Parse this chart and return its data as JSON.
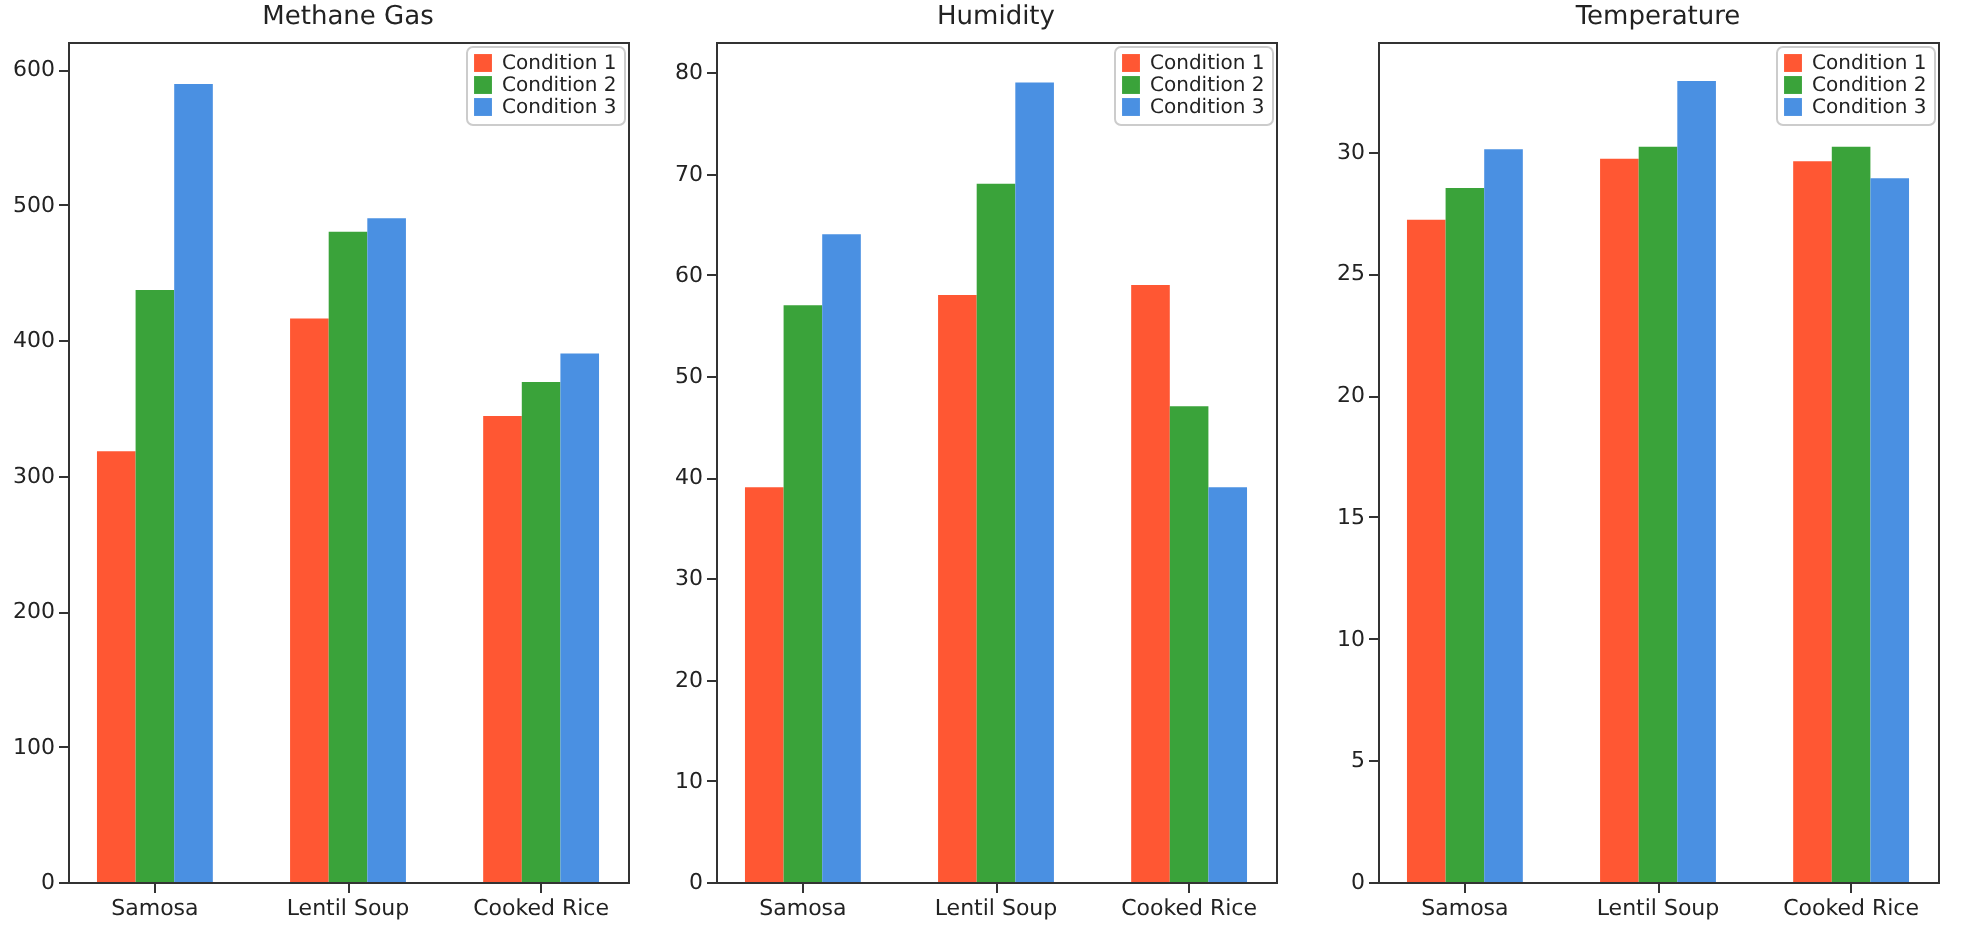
{
  "chart_data": [
    {
      "type": "bar",
      "title": "Methane Gas",
      "categories": [
        "Samosa",
        "Lentil Soup",
        "Cooked Rice"
      ],
      "series": [
        {
          "name": "Condition 1",
          "color": "#ff5733",
          "values": [
            318,
            416,
            344
          ]
        },
        {
          "name": "Condition 2",
          "color": "#3aa33a",
          "values": [
            437,
            480,
            369
          ]
        },
        {
          "name": "Condition 3",
          "color": "#4a90e2",
          "values": [
            589,
            490,
            390
          ]
        }
      ],
      "ylim": [
        0,
        620
      ],
      "yticks": [
        0,
        100,
        200,
        300,
        400,
        500,
        600
      ],
      "legend": "top right"
    },
    {
      "type": "bar",
      "title": "Humidity",
      "categories": [
        "Samosa",
        "Lentil Soup",
        "Cooked Rice"
      ],
      "series": [
        {
          "name": "Condition 1",
          "color": "#ff5733",
          "values": [
            39,
            58,
            59
          ]
        },
        {
          "name": "Condition 2",
          "color": "#3aa33a",
          "values": [
            57,
            69,
            47
          ]
        },
        {
          "name": "Condition 3",
          "color": "#4a90e2",
          "values": [
            64,
            79,
            39
          ]
        }
      ],
      "ylim": [
        0,
        83
      ],
      "yticks": [
        0,
        10,
        20,
        30,
        40,
        50,
        60,
        70,
        80
      ],
      "legend": "top right"
    },
    {
      "type": "bar",
      "title": "Temperature",
      "categories": [
        "Samosa",
        "Lentil Soup",
        "Cooked Rice"
      ],
      "series": [
        {
          "name": "Condition 1",
          "color": "#ff5733",
          "values": [
            27.2,
            29.7,
            29.6
          ]
        },
        {
          "name": "Condition 2",
          "color": "#3aa33a",
          "values": [
            28.5,
            30.2,
            30.2
          ]
        },
        {
          "name": "Condition 3",
          "color": "#4a90e2",
          "values": [
            30.1,
            32.9,
            28.9
          ]
        }
      ],
      "ylim": [
        0,
        34.5
      ],
      "yticks": [
        0,
        5,
        10,
        15,
        20,
        25,
        30
      ],
      "legend": "top right"
    }
  ]
}
